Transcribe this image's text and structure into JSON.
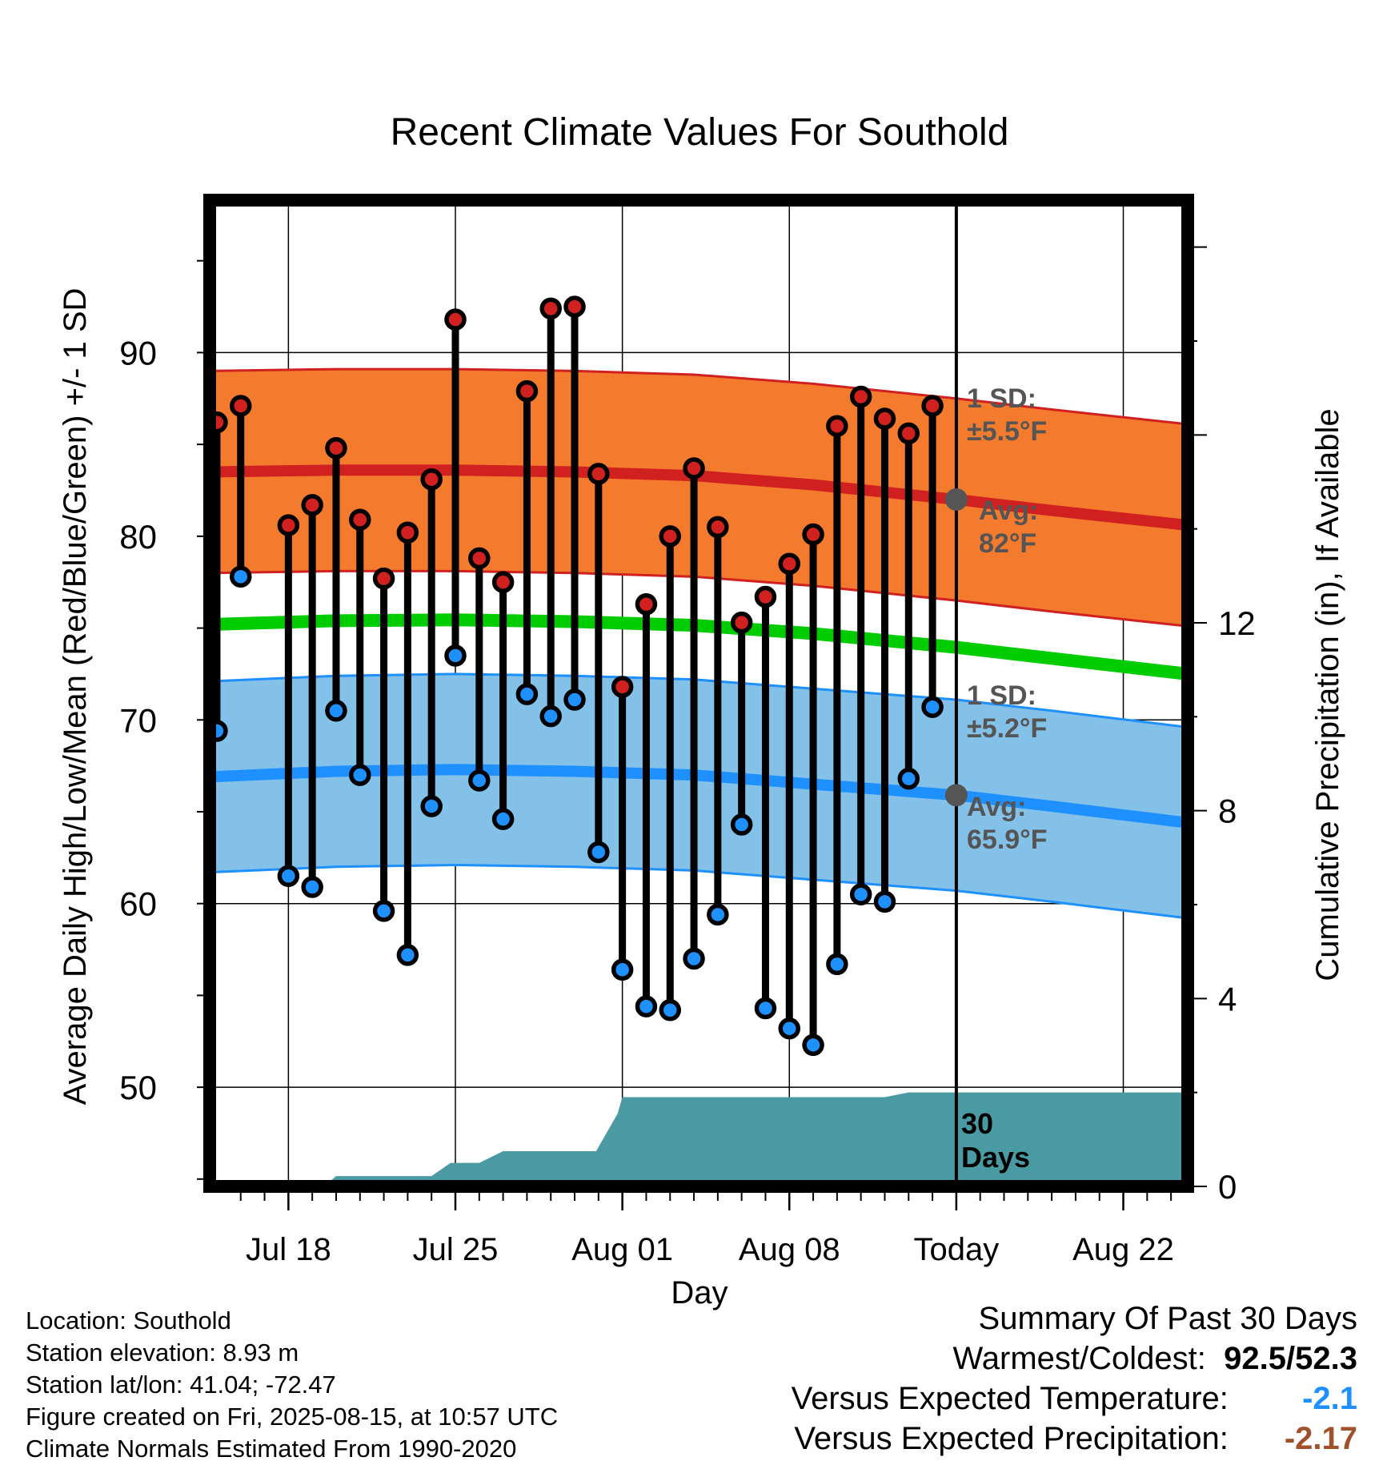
{
  "chart_data": {
    "type": "line",
    "title": "Recent Climate Values For Southold",
    "xlabel": "Day",
    "ylabel_left": "Average Daily High/Low/Mean (Red/Blue/Green) +/- 1 SD",
    "ylabel_right": "Cumulative Precipitation (in), If Available",
    "x_tick_labels": [
      "Jul 18",
      "Jul 25",
      "Aug 01",
      "Aug 08",
      "Today",
      "Aug 22"
    ],
    "x_tick_days": [
      18,
      25,
      32,
      39,
      46,
      53
    ],
    "x_range_days": [
      14.7,
      55.7
    ],
    "y_left_ticks": [
      50,
      60,
      70,
      80,
      90
    ],
    "y_left_range": [
      44.6,
      98.3
    ],
    "y_right_ticks": [
      0,
      4,
      8,
      12
    ],
    "y_right_range": [
      0,
      21.0
    ],
    "grid": true,
    "today_day": 46,
    "obs_days": [
      15,
      16,
      18,
      19,
      20,
      21,
      22,
      23,
      24,
      25,
      26,
      27,
      28,
      29,
      30,
      31,
      32,
      33,
      34,
      35,
      36,
      37,
      38,
      39,
      40,
      41,
      42,
      43,
      44,
      45
    ],
    "series": [
      {
        "name": "High",
        "color": "#d02020",
        "values": [
          86.2,
          87.1,
          80.6,
          81.7,
          84.8,
          80.9,
          77.7,
          80.2,
          83.1,
          91.8,
          78.8,
          77.5,
          87.9,
          92.4,
          92.5,
          83.4,
          71.8,
          76.3,
          80.0,
          83.7,
          80.5,
          75.3,
          76.7,
          78.5,
          80.1,
          86.0,
          87.6,
          86.4,
          85.6,
          87.1
        ]
      },
      {
        "name": "Low",
        "color": "#1e90ff",
        "values": [
          69.4,
          77.8,
          61.5,
          60.9,
          70.5,
          67.0,
          59.6,
          57.2,
          65.3,
          73.5,
          66.7,
          64.6,
          71.4,
          70.2,
          71.1,
          62.8,
          56.4,
          54.4,
          54.2,
          57.0,
          59.4,
          64.3,
          54.3,
          53.2,
          52.3,
          56.7,
          60.5,
          60.1,
          66.8,
          70.7
        ]
      }
    ],
    "normals": {
      "days": [
        14.7,
        20,
        25,
        30,
        35,
        40,
        46,
        50,
        55.7
      ],
      "high_avg": [
        83.5,
        83.6,
        83.6,
        83.5,
        83.3,
        82.8,
        82.0,
        81.4,
        80.6
      ],
      "high_sd": 5.5,
      "low_avg": [
        66.9,
        67.2,
        67.3,
        67.2,
        67.0,
        66.5,
        65.9,
        65.3,
        64.4
      ],
      "low_sd": 5.2,
      "mean": [
        75.2,
        75.4,
        75.45,
        75.35,
        75.15,
        74.7,
        73.95,
        73.35,
        72.5
      ]
    },
    "precip_cumulative": {
      "days": [
        15,
        16.6,
        19.5,
        20,
        24,
        24.8,
        26,
        27,
        28,
        29.8,
        30.9,
        31.8,
        32,
        33,
        35,
        38,
        43,
        44,
        45,
        46,
        55.7
      ],
      "values": [
        0,
        0,
        0,
        0.22,
        0.22,
        0.5,
        0.5,
        0.75,
        0.75,
        0.75,
        0.75,
        1.55,
        1.9,
        1.9,
        1.9,
        1.9,
        1.9,
        2.0,
        2.0,
        2.0,
        2.0
      ]
    },
    "annotations": {
      "high_sd_line1": "1 SD:",
      "high_sd_line2": "±5.5°F",
      "high_avg_line1": "Avg:",
      "high_avg_line2": "82°F",
      "low_sd_line1": "1 SD:",
      "low_sd_line2": "±5.2°F",
      "low_avg_line1": "Avg:",
      "low_avg_line2": "65.9°F",
      "precip_line1": "30",
      "precip_line2": "Days"
    },
    "colors": {
      "high_band": "#f47b2e",
      "high_line": "#d02020",
      "low_band": "#83c1e8",
      "low_line": "#1e90ff",
      "mean_line": "#00cc00",
      "precip_fill": "#4a9aa3",
      "annotation_text": "#555555"
    }
  },
  "footer": {
    "location": "Location: Southold",
    "elevation": "Station elevation: 8.93 m",
    "latlon": "Station lat/lon: 41.04; -72.47",
    "created": "Figure created on Fri, 2025-08-15, at 10:57 UTC",
    "normals": "Climate Normals Estimated From 1990-2020"
  },
  "summary": {
    "title": "Summary Of Past 30 Days",
    "warm_cold_label": "Warmest/Coldest:",
    "warm_cold_value": "92.5/52.3",
    "temp_label": "Versus Expected Temperature:",
    "temp_value": "-2.1",
    "temp_color": "#1e90ff",
    "precip_label": "Versus Expected Precipitation:",
    "precip_value": "-2.17",
    "precip_color": "#a0522d"
  }
}
